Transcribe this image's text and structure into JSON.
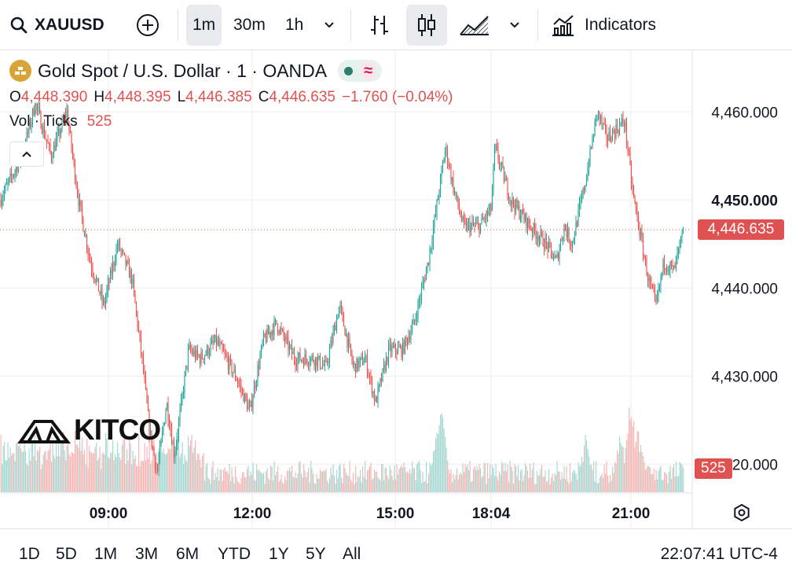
{
  "toolbar": {
    "symbol": "XAUUSD",
    "add_icon": "plus-circle-icon",
    "intervals": [
      {
        "label": "1m",
        "active": true
      },
      {
        "label": "30m",
        "active": false
      },
      {
        "label": "1h",
        "active": false
      }
    ],
    "indicators_label": "Indicators"
  },
  "legend": {
    "title": "Gold Spot / U.S. Dollar · 1 · OANDA",
    "ohlc": {
      "o_label": "O",
      "o": "4,448.390",
      "h_label": "H",
      "h": "4,448.395",
      "l_label": "L",
      "l": "4,446.385",
      "c_label": "C",
      "c": "4,446.635",
      "change": "−1.760 (−0.04%)"
    },
    "volume_label": "Vol · Ticks",
    "volume_value": "525"
  },
  "price_axis": {
    "ticks": [
      "4,460.000",
      "4,450.000",
      "4,440.000",
      "4,430.000",
      "4,420.000"
    ],
    "bold_tick": "4,450.000",
    "current_price": "4,446.635",
    "current_volume": "525"
  },
  "time_axis": {
    "ticks": [
      "09:00",
      "12:00",
      "15:00",
      "18:04",
      "21:00"
    ]
  },
  "watermark": "KITCO",
  "ranges": [
    "1D",
    "5D",
    "1M",
    "3M",
    "6M",
    "YTD",
    "1Y",
    "5Y",
    "All"
  ],
  "clock": "22:07:41 UTC-4",
  "colors": {
    "up": "#26a69a",
    "down": "#ef5350",
    "up_vol": "#a8d9d3",
    "down_vol": "#f6b9b7",
    "grid": "#eceef2",
    "label": "#e05252"
  },
  "chart_data": {
    "type": "candlestick",
    "price_range": [
      4417,
      4467
    ],
    "x_ticks": [
      "09:00",
      "12:00",
      "15:00",
      "18:04",
      "21:00"
    ],
    "y_ticks": [
      4460,
      4450,
      4440,
      4430,
      4420
    ],
    "last_price": 4446.635,
    "last_volume": 525,
    "close_path": [
      {
        "x": 0,
        "y": 4450
      },
      {
        "x": 28,
        "y": 4455
      },
      {
        "x": 45,
        "y": 4461
      },
      {
        "x": 65,
        "y": 4455
      },
      {
        "x": 85,
        "y": 4460
      },
      {
        "x": 100,
        "y": 4450
      },
      {
        "x": 115,
        "y": 4443
      },
      {
        "x": 132,
        "y": 4438
      },
      {
        "x": 150,
        "y": 4445
      },
      {
        "x": 168,
        "y": 4441
      },
      {
        "x": 182,
        "y": 4431
      },
      {
        "x": 190,
        "y": 4424
      },
      {
        "x": 200,
        "y": 4419
      },
      {
        "x": 212,
        "y": 4427
      },
      {
        "x": 222,
        "y": 4421
      },
      {
        "x": 240,
        "y": 4433
      },
      {
        "x": 255,
        "y": 4432
      },
      {
        "x": 275,
        "y": 4434
      },
      {
        "x": 300,
        "y": 4430
      },
      {
        "x": 318,
        "y": 4426
      },
      {
        "x": 335,
        "y": 4434
      },
      {
        "x": 352,
        "y": 4436
      },
      {
        "x": 375,
        "y": 4432
      },
      {
        "x": 400,
        "y": 4432
      },
      {
        "x": 415,
        "y": 4431
      },
      {
        "x": 432,
        "y": 4438
      },
      {
        "x": 450,
        "y": 4431
      },
      {
        "x": 465,
        "y": 4432
      },
      {
        "x": 478,
        "y": 4427
      },
      {
        "x": 495,
        "y": 4433
      },
      {
        "x": 512,
        "y": 4433
      },
      {
        "x": 527,
        "y": 4436
      },
      {
        "x": 545,
        "y": 4443
      },
      {
        "x": 557,
        "y": 4450
      },
      {
        "x": 567,
        "y": 4456
      },
      {
        "x": 578,
        "y": 4451
      },
      {
        "x": 590,
        "y": 4447
      },
      {
        "x": 610,
        "y": 4447
      },
      {
        "x": 625,
        "y": 4449
      },
      {
        "x": 630,
        "y": 4456
      },
      {
        "x": 650,
        "y": 4450
      },
      {
        "x": 675,
        "y": 4447
      },
      {
        "x": 695,
        "y": 4445
      },
      {
        "x": 708,
        "y": 4443
      },
      {
        "x": 718,
        "y": 4447
      },
      {
        "x": 728,
        "y": 4445
      },
      {
        "x": 745,
        "y": 4452
      },
      {
        "x": 760,
        "y": 4460
      },
      {
        "x": 773,
        "y": 4457
      },
      {
        "x": 795,
        "y": 4459
      },
      {
        "x": 805,
        "y": 4451
      },
      {
        "x": 815,
        "y": 4446
      },
      {
        "x": 825,
        "y": 4441
      },
      {
        "x": 835,
        "y": 4438
      },
      {
        "x": 845,
        "y": 4443
      },
      {
        "x": 858,
        "y": 4442
      },
      {
        "x": 870,
        "y": 4446.6
      }
    ],
    "volume_spikes": [
      {
        "x": 170,
        "y": 0.45
      },
      {
        "x": 195,
        "y": 0.55
      },
      {
        "x": 225,
        "y": 0.6
      },
      {
        "x": 560,
        "y": 1.0
      },
      {
        "x": 745,
        "y": 0.6
      },
      {
        "x": 790,
        "y": 0.65
      },
      {
        "x": 803,
        "y": 1.0
      },
      {
        "x": 812,
        "y": 0.7
      }
    ]
  }
}
